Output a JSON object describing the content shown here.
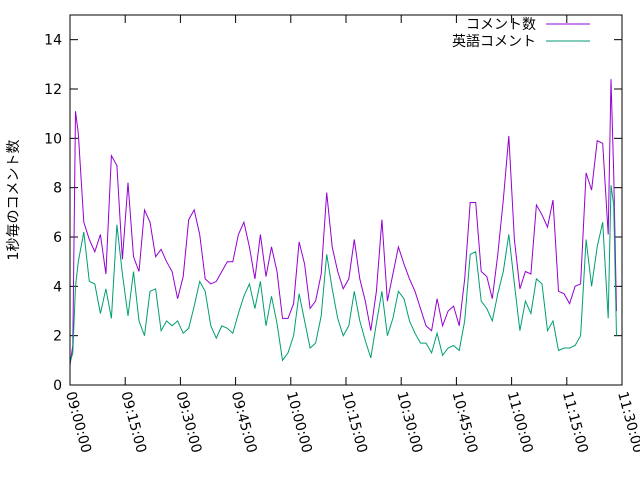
{
  "chart_data": {
    "type": "line",
    "title": "",
    "xlabel": "",
    "ylabel": "1秒毎のコメント数",
    "xlim": [
      "09:00:00",
      "11:30:00"
    ],
    "ylim": [
      0,
      15
    ],
    "x_ticks": [
      "09:00:00",
      "09:15:00",
      "09:30:00",
      "09:45:00",
      "10:00:00",
      "10:15:00",
      "10:30:00",
      "10:45:00",
      "11:00:00",
      "11:15:00",
      "11:30:00"
    ],
    "y_ticks": [
      "0",
      "2",
      "4",
      "6",
      "8",
      "10",
      "12",
      "14"
    ],
    "grid": false,
    "legend_position": "top-right",
    "series": [
      {
        "name": "コメント数",
        "color": "#9400d3",
        "points": [
          [
            "09:00:00",
            0.8
          ],
          [
            "09:00:45",
            1.6
          ],
          [
            "09:01:30",
            11.1
          ],
          [
            "09:02:15",
            10.2
          ],
          [
            "09:03:45",
            6.6
          ],
          [
            "09:05:15",
            5.9
          ],
          [
            "09:06:45",
            5.4
          ],
          [
            "09:08:15",
            6.1
          ],
          [
            "09:09:45",
            4.5
          ],
          [
            "09:11:15",
            9.3
          ],
          [
            "09:12:45",
            8.9
          ],
          [
            "09:14:15",
            5.1
          ],
          [
            "09:15:45",
            8.2
          ],
          [
            "09:17:15",
            5.2
          ],
          [
            "09:18:45",
            4.6
          ],
          [
            "09:20:15",
            7.1
          ],
          [
            "09:21:45",
            6.6
          ],
          [
            "09:23:15",
            5.2
          ],
          [
            "09:24:45",
            5.5
          ],
          [
            "09:26:15",
            5.0
          ],
          [
            "09:27:45",
            4.6
          ],
          [
            "09:29:15",
            3.5
          ],
          [
            "09:30:45",
            4.4
          ],
          [
            "09:32:15",
            6.7
          ],
          [
            "09:33:45",
            7.1
          ],
          [
            "09:35:15",
            6.1
          ],
          [
            "09:36:45",
            4.3
          ],
          [
            "09:38:15",
            4.1
          ],
          [
            "09:39:45",
            4.2
          ],
          [
            "09:41:15",
            4.6
          ],
          [
            "09:42:45",
            5.0
          ],
          [
            "09:44:15",
            5.0
          ],
          [
            "09:45:45",
            6.1
          ],
          [
            "09:47:15",
            6.6
          ],
          [
            "09:48:45",
            5.6
          ],
          [
            "09:50:15",
            4.3
          ],
          [
            "09:51:45",
            6.1
          ],
          [
            "09:53:15",
            4.4
          ],
          [
            "09:54:45",
            5.6
          ],
          [
            "09:56:15",
            4.6
          ],
          [
            "09:57:45",
            2.7
          ],
          [
            "09:59:15",
            2.7
          ],
          [
            "10:00:45",
            3.3
          ],
          [
            "10:02:15",
            5.8
          ],
          [
            "10:03:45",
            4.9
          ],
          [
            "10:05:15",
            3.1
          ],
          [
            "10:06:45",
            3.4
          ],
          [
            "10:08:15",
            4.5
          ],
          [
            "10:09:45",
            7.8
          ],
          [
            "10:11:15",
            5.6
          ],
          [
            "10:12:45",
            4.6
          ],
          [
            "10:14:15",
            3.9
          ],
          [
            "10:15:45",
            4.3
          ],
          [
            "10:17:15",
            5.9
          ],
          [
            "10:18:45",
            4.3
          ],
          [
            "10:20:15",
            3.4
          ],
          [
            "10:21:45",
            2.2
          ],
          [
            "10:23:15",
            3.8
          ],
          [
            "10:24:45",
            6.7
          ],
          [
            "10:26:15",
            3.4
          ],
          [
            "10:27:45",
            4.5
          ],
          [
            "10:29:15",
            5.6
          ],
          [
            "10:30:45",
            4.9
          ],
          [
            "10:32:15",
            4.3
          ],
          [
            "10:33:45",
            3.8
          ],
          [
            "10:35:15",
            3.1
          ],
          [
            "10:36:45",
            2.4
          ],
          [
            "10:38:15",
            2.2
          ],
          [
            "10:39:45",
            3.5
          ],
          [
            "10:41:15",
            2.4
          ],
          [
            "10:42:45",
            3.0
          ],
          [
            "10:44:15",
            3.2
          ],
          [
            "10:45:45",
            2.4
          ],
          [
            "10:47:15",
            4.3
          ],
          [
            "10:48:45",
            7.4
          ],
          [
            "10:50:15",
            7.4
          ],
          [
            "10:51:45",
            4.6
          ],
          [
            "10:53:15",
            4.4
          ],
          [
            "10:54:45",
            3.5
          ],
          [
            "10:56:15",
            5.3
          ],
          [
            "10:57:45",
            7.5
          ],
          [
            "10:59:15",
            10.1
          ],
          [
            "11:00:45",
            5.9
          ],
          [
            "11:02:15",
            3.9
          ],
          [
            "11:03:45",
            4.6
          ],
          [
            "11:05:15",
            4.5
          ],
          [
            "11:06:45",
            7.3
          ],
          [
            "11:08:15",
            6.9
          ],
          [
            "11:09:45",
            6.4
          ],
          [
            "11:11:15",
            7.5
          ],
          [
            "11:12:45",
            3.8
          ],
          [
            "11:14:15",
            3.7
          ],
          [
            "11:15:45",
            3.3
          ],
          [
            "11:17:15",
            4.0
          ],
          [
            "11:18:45",
            4.1
          ],
          [
            "11:20:15",
            8.6
          ],
          [
            "11:21:45",
            7.9
          ],
          [
            "11:23:15",
            9.9
          ],
          [
            "11:24:45",
            9.8
          ],
          [
            "11:26:15",
            6.1
          ],
          [
            "11:27:00",
            12.4
          ],
          [
            "11:27:45",
            8.6
          ],
          [
            "11:28:30",
            3.0
          ]
        ]
      },
      {
        "name": "英語コメント",
        "color": "#009e73",
        "points": [
          [
            "09:00:00",
            0.9
          ],
          [
            "09:00:45",
            1.3
          ],
          [
            "09:01:30",
            4.0
          ],
          [
            "09:02:15",
            5.0
          ],
          [
            "09:03:45",
            6.2
          ],
          [
            "09:05:15",
            4.2
          ],
          [
            "09:06:45",
            4.1
          ],
          [
            "09:08:15",
            2.9
          ],
          [
            "09:09:45",
            3.9
          ],
          [
            "09:11:15",
            2.7
          ],
          [
            "09:12:45",
            6.5
          ],
          [
            "09:14:15",
            4.5
          ],
          [
            "09:15:45",
            2.8
          ],
          [
            "09:17:15",
            4.6
          ],
          [
            "09:18:45",
            2.6
          ],
          [
            "09:20:15",
            2.0
          ],
          [
            "09:21:45",
            3.8
          ],
          [
            "09:23:15",
            3.9
          ],
          [
            "09:24:45",
            2.2
          ],
          [
            "09:26:15",
            2.6
          ],
          [
            "09:27:45",
            2.4
          ],
          [
            "09:29:15",
            2.6
          ],
          [
            "09:30:45",
            2.1
          ],
          [
            "09:32:15",
            2.3
          ],
          [
            "09:33:45",
            3.2
          ],
          [
            "09:35:15",
            4.2
          ],
          [
            "09:36:45",
            3.8
          ],
          [
            "09:38:15",
            2.4
          ],
          [
            "09:39:45",
            1.9
          ],
          [
            "09:41:15",
            2.4
          ],
          [
            "09:42:45",
            2.3
          ],
          [
            "09:44:15",
            2.1
          ],
          [
            "09:45:45",
            2.9
          ],
          [
            "09:47:15",
            3.6
          ],
          [
            "09:48:45",
            4.1
          ],
          [
            "09:50:15",
            3.1
          ],
          [
            "09:51:45",
            4.2
          ],
          [
            "09:53:15",
            2.4
          ],
          [
            "09:54:45",
            3.6
          ],
          [
            "09:56:15",
            2.5
          ],
          [
            "09:57:45",
            1.0
          ],
          [
            "09:59:15",
            1.3
          ],
          [
            "10:00:45",
            2.0
          ],
          [
            "10:02:15",
            3.7
          ],
          [
            "10:03:45",
            2.6
          ],
          [
            "10:05:15",
            1.5
          ],
          [
            "10:06:45",
            1.7
          ],
          [
            "10:08:15",
            2.8
          ],
          [
            "10:09:45",
            5.3
          ],
          [
            "10:11:15",
            3.9
          ],
          [
            "10:12:45",
            2.7
          ],
          [
            "10:14:15",
            2.0
          ],
          [
            "10:15:45",
            2.4
          ],
          [
            "10:17:15",
            3.8
          ],
          [
            "10:18:45",
            2.6
          ],
          [
            "10:20:15",
            1.8
          ],
          [
            "10:21:45",
            1.1
          ],
          [
            "10:23:15",
            2.5
          ],
          [
            "10:24:45",
            3.8
          ],
          [
            "10:26:15",
            2.0
          ],
          [
            "10:27:45",
            2.7
          ],
          [
            "10:29:15",
            3.8
          ],
          [
            "10:30:45",
            3.5
          ],
          [
            "10:32:15",
            2.6
          ],
          [
            "10:33:45",
            2.1
          ],
          [
            "10:35:15",
            1.7
          ],
          [
            "10:36:45",
            1.7
          ],
          [
            "10:38:15",
            1.3
          ],
          [
            "10:39:45",
            2.1
          ],
          [
            "10:41:15",
            1.2
          ],
          [
            "10:42:45",
            1.5
          ],
          [
            "10:44:15",
            1.6
          ],
          [
            "10:45:45",
            1.4
          ],
          [
            "10:47:15",
            2.6
          ],
          [
            "10:48:45",
            5.3
          ],
          [
            "10:50:15",
            5.4
          ],
          [
            "10:51:45",
            3.4
          ],
          [
            "10:53:15",
            3.1
          ],
          [
            "10:54:45",
            2.6
          ],
          [
            "10:56:15",
            3.7
          ],
          [
            "10:57:45",
            4.6
          ],
          [
            "10:59:15",
            6.1
          ],
          [
            "11:00:45",
            4.1
          ],
          [
            "11:02:15",
            2.2
          ],
          [
            "11:03:45",
            3.4
          ],
          [
            "11:05:15",
            2.9
          ],
          [
            "11:06:45",
            4.3
          ],
          [
            "11:08:15",
            4.1
          ],
          [
            "11:09:45",
            2.2
          ],
          [
            "11:11:15",
            2.6
          ],
          [
            "11:12:45",
            1.4
          ],
          [
            "11:14:15",
            1.5
          ],
          [
            "11:15:45",
            1.5
          ],
          [
            "11:17:15",
            1.6
          ],
          [
            "11:18:45",
            2.0
          ],
          [
            "11:20:15",
            5.9
          ],
          [
            "11:21:45",
            4.0
          ],
          [
            "11:23:15",
            5.6
          ],
          [
            "11:24:45",
            6.6
          ],
          [
            "11:26:15",
            2.7
          ],
          [
            "11:27:00",
            8.1
          ],
          [
            "11:27:45",
            7.3
          ],
          [
            "11:28:30",
            2.0
          ]
        ]
      }
    ]
  }
}
